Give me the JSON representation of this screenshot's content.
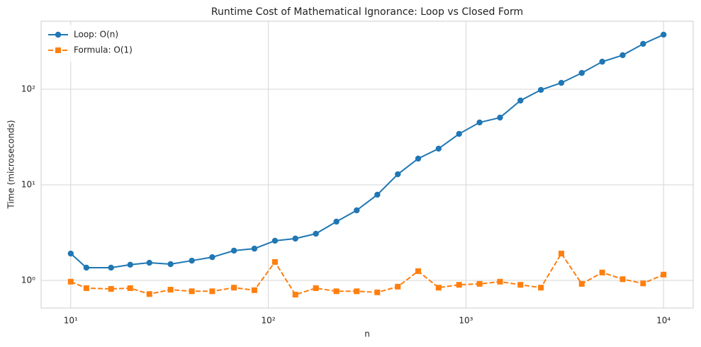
{
  "chart_data": {
    "type": "line",
    "title": "Runtime Cost of Mathematical Ignorance: Loop vs Closed Form",
    "x_label": "n",
    "y_label": "Time (microseconds)",
    "xscale": "log",
    "yscale": "log",
    "grid": true,
    "legend": "upper left",
    "x": [
      10,
      12,
      16,
      20,
      25,
      32,
      41,
      52,
      67,
      85,
      108,
      137,
      174,
      221,
      280,
      356,
      452,
      573,
      727,
      923,
      1172,
      1487,
      1887,
      2395,
      3039,
      3856,
      4893,
      6210,
      7880,
      10000
    ],
    "series": [
      {
        "name": "Loop: O(n)",
        "color": "#1f77b4",
        "marker": "circle",
        "linestyle": "solid",
        "values": [
          1.91,
          1.36,
          1.36,
          1.46,
          1.53,
          1.48,
          1.61,
          1.75,
          2.05,
          2.15,
          2.6,
          2.74,
          3.08,
          4.12,
          5.41,
          7.88,
          12.9,
          18.8,
          23.9,
          34.1,
          44.9,
          50.5,
          76.1,
          98.4,
          116.6,
          148,
          194,
          227,
          298,
          372
        ]
      },
      {
        "name": "Formula: O(1)",
        "color": "#ff7f0e",
        "marker": "square",
        "linestyle": "dashed",
        "values": [
          0.97,
          0.83,
          0.815,
          0.83,
          0.72,
          0.8,
          0.77,
          0.77,
          0.84,
          0.79,
          1.56,
          0.71,
          0.83,
          0.77,
          0.77,
          0.75,
          0.86,
          1.25,
          0.84,
          0.9,
          0.92,
          0.97,
          0.9,
          0.84,
          1.91,
          0.92,
          1.21,
          1.03,
          0.93,
          1.15
        ]
      }
    ],
    "xlim": [
      7.08,
      14125
    ],
    "ylim": [
      0.514,
      514
    ],
    "xticks": [
      {
        "value": 10,
        "label": "10¹"
      },
      {
        "value": 100,
        "label": "10²"
      },
      {
        "value": 1000,
        "label": "10³"
      },
      {
        "value": 10000,
        "label": "10⁴"
      }
    ],
    "yticks": [
      {
        "value": 1,
        "label": "10⁰"
      },
      {
        "value": 10,
        "label": "10¹"
      },
      {
        "value": 100,
        "label": "10²"
      }
    ]
  }
}
